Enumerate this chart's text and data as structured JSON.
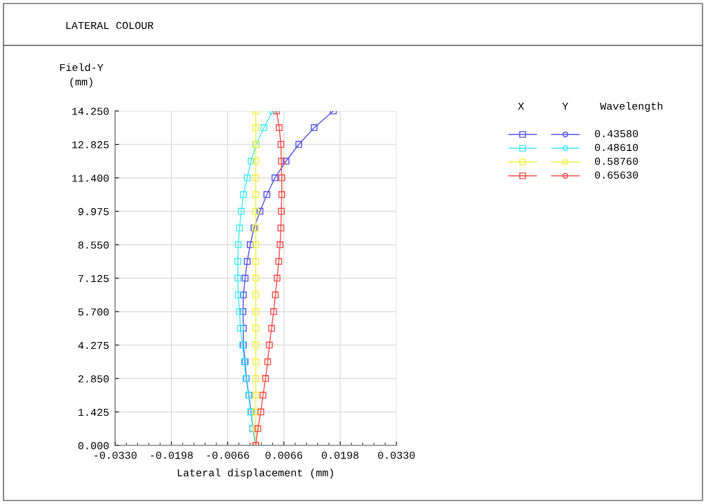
{
  "chart_data": {
    "type": "line",
    "title": "LATERAL COLOUR",
    "xlabel": "Lateral displacement (mm)",
    "ylabel": "Field-Y\n(mm)",
    "legend_title": "X      Y     Wavelength",
    "xlim": [
      -0.033,
      0.033
    ],
    "xticks": [
      {
        "value": -0.033,
        "label": "-0.0330"
      },
      {
        "value": -0.0198,
        "label": "-0.0198"
      },
      {
        "value": -0.0066,
        "label": "-0.0066"
      },
      {
        "value": 0.0066,
        "label": "0.0066"
      },
      {
        "value": 0.0198,
        "label": "0.0198"
      },
      {
        "value": 0.033,
        "label": "0.0330"
      }
    ],
    "ylim": [
      0,
      14.25
    ],
    "yticks": [
      {
        "value": 0,
        "label": "0.000"
      },
      {
        "value": 1.425,
        "label": "1.425"
      },
      {
        "value": 2.85,
        "label": "2.850"
      },
      {
        "value": 4.275,
        "label": "4.275"
      },
      {
        "value": 5.7,
        "label": "5.700"
      },
      {
        "value": 7.125,
        "label": "7.125"
      },
      {
        "value": 8.55,
        "label": "8.550"
      },
      {
        "value": 9.975,
        "label": "9.975"
      },
      {
        "value": 11.4,
        "label": "11.400"
      },
      {
        "value": 12.825,
        "label": "12.825"
      },
      {
        "value": 14.25,
        "label": "14.250"
      }
    ],
    "series": [
      {
        "name": "0.43580",
        "color": "#5050e0",
        "x": [
          0,
          -0.0007,
          -0.0011,
          -0.0016,
          -0.0022,
          -0.0025,
          -0.0029,
          -0.0029,
          -0.003,
          -0.0029,
          -0.0025,
          -0.002,
          -0.0013,
          -0.0004,
          0.001,
          0.0026,
          0.0045,
          0.0071,
          0.0101,
          0.0137,
          0.0182
        ],
        "values": [
          0,
          0.7125,
          1.425,
          2.1375,
          2.85,
          3.5625,
          4.275,
          4.9875,
          5.7,
          6.4125,
          7.125,
          7.8375,
          8.55,
          9.2625,
          9.975,
          10.6875,
          11.4,
          12.1125,
          12.825,
          13.5375,
          14.25
        ]
      },
      {
        "name": "0.48610",
        "color": "#40e8f0",
        "x": [
          0,
          -0.0007,
          -0.0012,
          -0.0017,
          -0.0023,
          -0.0027,
          -0.0031,
          -0.0036,
          -0.0038,
          -0.0041,
          -0.0042,
          -0.0042,
          -0.0041,
          -0.0038,
          -0.0034,
          -0.0029,
          -0.002,
          -0.0011,
          0.0001,
          0.0019,
          0.004
        ],
        "values": [
          0,
          0.7125,
          1.425,
          2.1375,
          2.85,
          3.5625,
          4.275,
          4.9875,
          5.7,
          6.4125,
          7.125,
          7.8375,
          8.55,
          9.2625,
          9.975,
          10.6875,
          11.4,
          12.1125,
          12.825,
          13.5375,
          14.25
        ]
      },
      {
        "name": "0.58760",
        "color": "#f0f040",
        "x": [
          0,
          0,
          0,
          0,
          0,
          0,
          0,
          0,
          0,
          0,
          0,
          0,
          0,
          0,
          0,
          0,
          0,
          0,
          0,
          0,
          0
        ],
        "values": [
          0,
          0.7125,
          1.425,
          2.1375,
          2.85,
          3.5625,
          4.275,
          4.9875,
          5.7,
          6.4125,
          7.125,
          7.8375,
          8.55,
          9.2625,
          9.975,
          10.6875,
          11.4,
          12.1125,
          12.825,
          13.5375,
          14.25
        ]
      },
      {
        "name": "0.65630",
        "color": "#f04848",
        "x": [
          0,
          0.0005,
          0.0012,
          0.0017,
          0.0023,
          0.0028,
          0.0032,
          0.0037,
          0.0042,
          0.0046,
          0.005,
          0.0054,
          0.0057,
          0.0059,
          0.006,
          0.0061,
          0.0061,
          0.006,
          0.0059,
          0.0055,
          0.0049
        ],
        "values": [
          0,
          0.7125,
          1.425,
          2.1375,
          2.85,
          3.5625,
          4.275,
          4.9875,
          5.7,
          6.4125,
          7.125,
          7.8375,
          8.55,
          9.2625,
          9.975,
          10.6875,
          11.4,
          12.1125,
          12.825,
          13.5375,
          14.25
        ]
      }
    ],
    "marker": "square",
    "grid": true,
    "legend": "top right"
  }
}
